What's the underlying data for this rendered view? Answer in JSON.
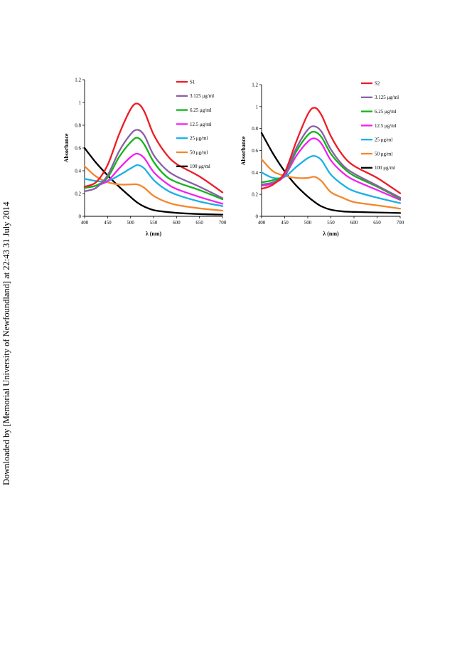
{
  "side_note": "Downloaded by [Memorial University of Newfoundland] at 22:43 31 July 2014",
  "chart_data": [
    {
      "type": "line",
      "xlabel": "λ (nm)",
      "ylabel": "Absorbance",
      "xlim": [
        400,
        700
      ],
      "ylim": [
        0,
        1.2
      ],
      "xticks": [
        "400",
        "450",
        "500",
        "550",
        "600",
        "650",
        "700"
      ],
      "yticks": [
        "0",
        "0.2",
        "0.4",
        "0.6",
        "0.8",
        "1",
        "1.2"
      ],
      "grid": false,
      "legend_position": "top-right",
      "x": [
        400,
        425,
        450,
        475,
        500,
        515,
        530,
        550,
        575,
        600,
        650,
        700
      ],
      "series": [
        {
          "name": "S1",
          "color": "#ee1c24",
          "values": [
            0.26,
            0.3,
            0.45,
            0.72,
            0.94,
            0.99,
            0.92,
            0.72,
            0.56,
            0.46,
            0.35,
            0.21
          ]
        },
        {
          "name": "3.125 μg/ml",
          "color": "#8a5fa8",
          "values": [
            0.22,
            0.25,
            0.36,
            0.57,
            0.72,
            0.76,
            0.71,
            0.54,
            0.42,
            0.35,
            0.26,
            0.16
          ]
        },
        {
          "name": "6.25 μg/ml",
          "color": "#11b518",
          "values": [
            0.25,
            0.27,
            0.34,
            0.52,
            0.65,
            0.69,
            0.63,
            0.48,
            0.36,
            0.3,
            0.23,
            0.15
          ]
        },
        {
          "name": "12.5 μg/ml",
          "color": "#f21ff2",
          "values": [
            0.25,
            0.27,
            0.31,
            0.42,
            0.52,
            0.55,
            0.51,
            0.39,
            0.3,
            0.24,
            0.17,
            0.11
          ]
        },
        {
          "name": "25 μg/ml",
          "color": "#1bb0e6",
          "values": [
            0.33,
            0.31,
            0.31,
            0.36,
            0.42,
            0.45,
            0.42,
            0.32,
            0.24,
            0.19,
            0.13,
            0.09
          ]
        },
        {
          "name": "50 μg/ml",
          "color": "#f4872d",
          "values": [
            0.44,
            0.35,
            0.3,
            0.28,
            0.28,
            0.28,
            0.25,
            0.18,
            0.13,
            0.1,
            0.07,
            0.05
          ]
        },
        {
          "name": "100 μg/ml",
          "color": "#000000",
          "values": [
            0.6,
            0.47,
            0.36,
            0.26,
            0.17,
            0.12,
            0.085,
            0.055,
            0.04,
            0.03,
            0.02,
            0.015
          ]
        }
      ]
    },
    {
      "type": "line",
      "xlabel": "λ (nm)",
      "ylabel": "Absorbance",
      "xlim": [
        400,
        700
      ],
      "ylim": [
        0,
        1.2
      ],
      "xticks": [
        "400",
        "450",
        "500",
        "550",
        "600",
        "650",
        "700"
      ],
      "yticks": [
        "0",
        "0.2",
        "0.4",
        "0.6",
        "0.8",
        "1",
        "1.2"
      ],
      "grid": false,
      "legend_position": "top-right",
      "x": [
        400,
        425,
        450,
        475,
        500,
        515,
        530,
        550,
        575,
        600,
        650,
        700
      ],
      "series": [
        {
          "name": "S2",
          "color": "#ee1c24",
          "values": [
            0.25,
            0.29,
            0.4,
            0.68,
            0.93,
            0.99,
            0.92,
            0.73,
            0.56,
            0.46,
            0.35,
            0.21
          ]
        },
        {
          "name": "3.125 μg/ml",
          "color": "#8a5fa8",
          "values": [
            0.29,
            0.31,
            0.38,
            0.62,
            0.79,
            0.82,
            0.77,
            0.61,
            0.47,
            0.39,
            0.28,
            0.17
          ]
        },
        {
          "name": "6.25 μg/ml",
          "color": "#11b518",
          "values": [
            0.31,
            0.33,
            0.38,
            0.59,
            0.74,
            0.77,
            0.72,
            0.57,
            0.45,
            0.37,
            0.27,
            0.16
          ]
        },
        {
          "name": "12.5 μg/ml",
          "color": "#f21ff2",
          "values": [
            0.28,
            0.3,
            0.37,
            0.55,
            0.68,
            0.71,
            0.66,
            0.51,
            0.4,
            0.33,
            0.24,
            0.15
          ]
        },
        {
          "name": "25 μg/ml",
          "color": "#1bb0e6",
          "values": [
            0.4,
            0.35,
            0.36,
            0.45,
            0.53,
            0.55,
            0.51,
            0.38,
            0.29,
            0.23,
            0.17,
            0.12
          ]
        },
        {
          "name": "50 μg/ml",
          "color": "#f4872d",
          "values": [
            0.52,
            0.41,
            0.37,
            0.35,
            0.35,
            0.36,
            0.32,
            0.22,
            0.17,
            0.13,
            0.1,
            0.07
          ]
        },
        {
          "name": "100 μg/ml",
          "color": "#000000",
          "values": [
            0.76,
            0.57,
            0.41,
            0.28,
            0.18,
            0.13,
            0.09,
            0.06,
            0.045,
            0.04,
            0.035,
            0.03
          ]
        }
      ]
    }
  ]
}
